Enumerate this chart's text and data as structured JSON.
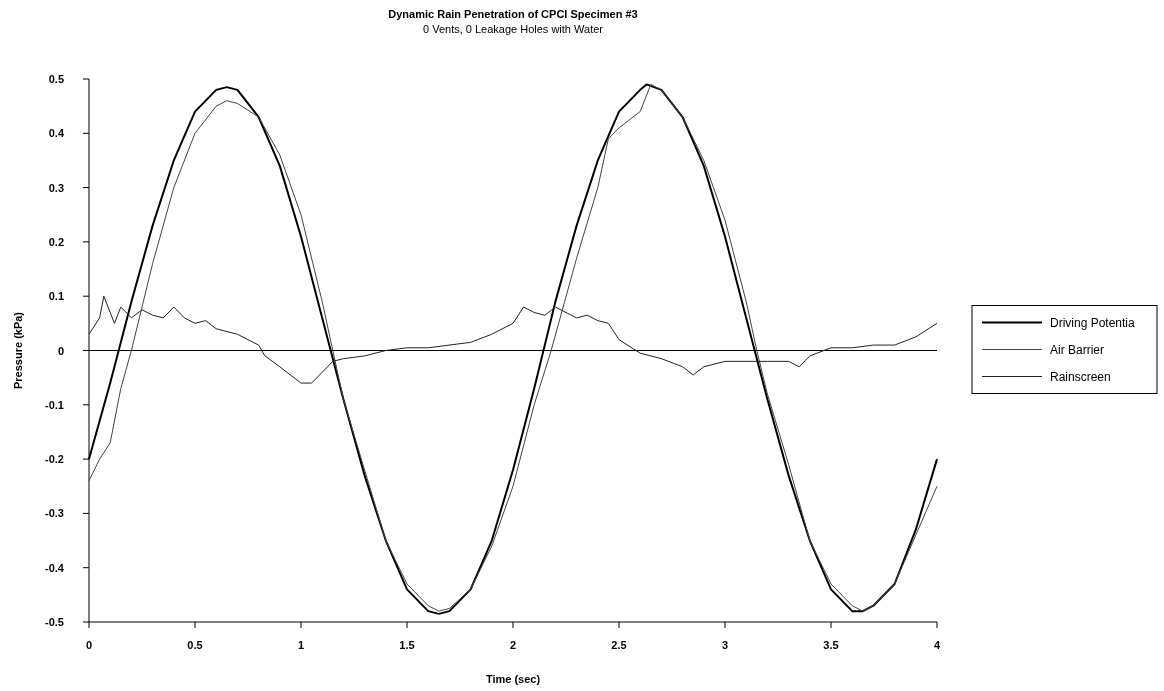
{
  "chart_data": {
    "type": "line",
    "title": "Dynamic Rain Penetration of CPCI Specimen #3",
    "subtitle": "0 Vents, 0 Leakage Holes with Water",
    "xlabel": "Time (sec)",
    "ylabel": "Pressure (kPa)",
    "xlim": [
      0,
      4
    ],
    "xticks": [
      0,
      0.5,
      1,
      1.5,
      2,
      2.5,
      3,
      3.5,
      4
    ],
    "ylim": [
      -0.5,
      0.5
    ],
    "yticks": [
      -0.5,
      -0.4,
      -0.3,
      -0.2,
      -0.1,
      0,
      0.1,
      0.2,
      0.3,
      0.4,
      0.5
    ],
    "grid": false,
    "legend": "right",
    "line_style": "solid",
    "marker": "none",
    "ref_lines": [
      {
        "axis": "y",
        "value": 0,
        "color": "#000000"
      }
    ],
    "series": [
      {
        "name": "Driving Potentia",
        "color": "#000000",
        "x": [
          0,
          0.1,
          0.2,
          0.3,
          0.4,
          0.5,
          0.6,
          0.65,
          0.7,
          0.8,
          0.9,
          1,
          1.1,
          1.2,
          1.3,
          1.4,
          1.5,
          1.6,
          1.65,
          1.7,
          1.8,
          1.9,
          2,
          2.1,
          2.2,
          2.3,
          2.4,
          2.5,
          2.6,
          2.63,
          2.7,
          2.8,
          2.9,
          3,
          3.1,
          3.2,
          3.3,
          3.4,
          3.5,
          3.6,
          3.65,
          3.7,
          3.8,
          3.9,
          4
        ],
        "values": [
          -0.2,
          -0.06,
          0.09,
          0.23,
          0.35,
          0.44,
          0.48,
          0.485,
          0.48,
          0.43,
          0.34,
          0.21,
          0.06,
          -0.09,
          -0.23,
          -0.35,
          -0.44,
          -0.48,
          -0.485,
          -0.48,
          -0.44,
          -0.35,
          -0.22,
          -0.07,
          0.09,
          0.23,
          0.35,
          0.44,
          0.48,
          0.49,
          0.48,
          0.43,
          0.34,
          0.21,
          0.06,
          -0.09,
          -0.23,
          -0.35,
          -0.44,
          -0.48,
          -0.48,
          -0.47,
          -0.43,
          -0.33,
          -0.2
        ]
      },
      {
        "name": "Air Barrier",
        "color": "#444444",
        "x": [
          0,
          0.05,
          0.1,
          0.15,
          0.2,
          0.3,
          0.4,
          0.5,
          0.6,
          0.65,
          0.7,
          0.8,
          0.9,
          1,
          1.1,
          1.15,
          1.2,
          1.3,
          1.4,
          1.5,
          1.6,
          1.65,
          1.7,
          1.8,
          1.9,
          2,
          2.1,
          2.18,
          2.3,
          2.4,
          2.45,
          2.5,
          2.6,
          2.65,
          2.7,
          2.8,
          2.9,
          3,
          3.1,
          3.15,
          3.2,
          3.3,
          3.4,
          3.5,
          3.6,
          3.65,
          3.7,
          3.8,
          3.9,
          4
        ],
        "values": [
          -0.24,
          -0.2,
          -0.17,
          -0.07,
          0,
          0.16,
          0.3,
          0.4,
          0.45,
          0.46,
          0.455,
          0.43,
          0.36,
          0.25,
          0.09,
          0,
          -0.09,
          -0.22,
          -0.35,
          -0.43,
          -0.47,
          -0.48,
          -0.475,
          -0.44,
          -0.36,
          -0.25,
          -0.1,
          0,
          0.17,
          0.3,
          0.39,
          0.41,
          0.44,
          0.49,
          0.48,
          0.43,
          0.35,
          0.24,
          0.09,
          0,
          -0.08,
          -0.21,
          -0.35,
          -0.43,
          -0.47,
          -0.48,
          -0.47,
          -0.43,
          -0.34,
          -0.25
        ]
      },
      {
        "name": "Rainscreen",
        "color": "#222222",
        "x": [
          0,
          0.05,
          0.07,
          0.1,
          0.12,
          0.15,
          0.2,
          0.25,
          0.3,
          0.35,
          0.4,
          0.45,
          0.5,
          0.55,
          0.6,
          0.7,
          0.8,
          0.83,
          0.9,
          1,
          1.05,
          1.1,
          1.15,
          1.2,
          1.3,
          1.4,
          1.5,
          1.6,
          1.7,
          1.8,
          1.9,
          2,
          2.05,
          2.1,
          2.15,
          2.2,
          2.25,
          2.3,
          2.35,
          2.4,
          2.45,
          2.5,
          2.6,
          2.7,
          2.8,
          2.85,
          2.9,
          3,
          3.1,
          3.2,
          3.3,
          3.35,
          3.4,
          3.5,
          3.6,
          3.7,
          3.8,
          3.9,
          4
        ],
        "values": [
          0.03,
          0.06,
          0.1,
          0.07,
          0.05,
          0.08,
          0.06,
          0.075,
          0.065,
          0.06,
          0.08,
          0.06,
          0.05,
          0.055,
          0.04,
          0.03,
          0.01,
          -0.01,
          -0.03,
          -0.06,
          -0.06,
          -0.04,
          -0.02,
          -0.015,
          -0.01,
          0,
          0.005,
          0.005,
          0.01,
          0.015,
          0.03,
          0.05,
          0.08,
          0.07,
          0.065,
          0.08,
          0.07,
          0.06,
          0.065,
          0.055,
          0.05,
          0.02,
          -0.005,
          -0.015,
          -0.03,
          -0.045,
          -0.03,
          -0.02,
          -0.02,
          -0.02,
          -0.02,
          -0.03,
          -0.01,
          0.005,
          0.005,
          0.01,
          0.01,
          0.025,
          0.05
        ]
      }
    ]
  }
}
